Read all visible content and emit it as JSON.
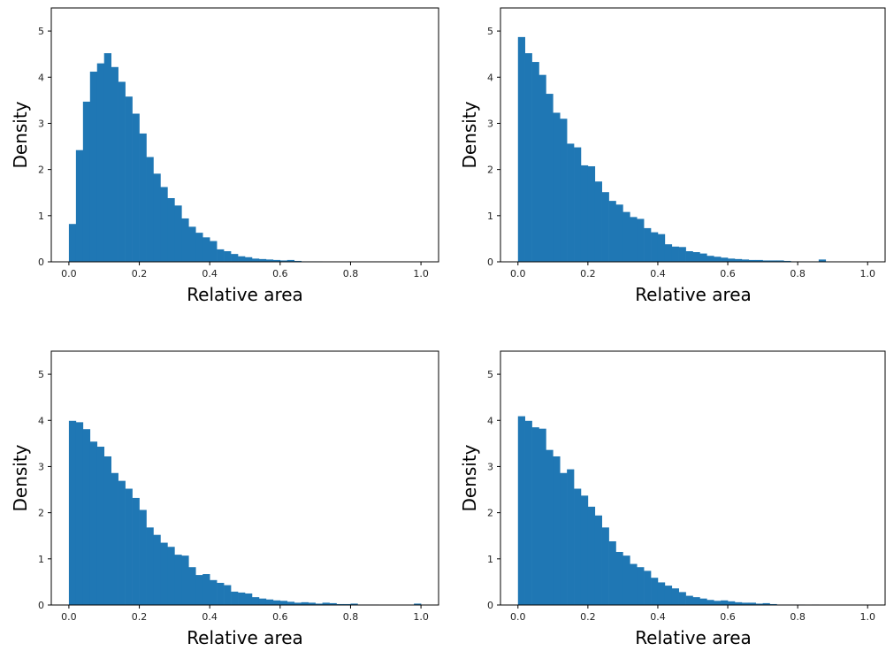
{
  "colors": {
    "bar": "#1f77b4",
    "axis": "#000000",
    "background": "#ffffff"
  },
  "chart_data": [
    {
      "type": "bar",
      "xlabel": "Relative area",
      "ylabel": "Density",
      "xlim": [
        -0.05,
        1.05
      ],
      "ylim": [
        0,
        5.5
      ],
      "xticks": [
        0.0,
        0.2,
        0.4,
        0.6,
        0.8,
        1.0
      ],
      "xtick_labels": [
        "0.0",
        "0.2",
        "0.4",
        "0.6",
        "0.8",
        "1.0"
      ],
      "yticks": [
        0,
        1,
        2,
        3,
        4,
        5
      ],
      "ytick_labels": [
        "0",
        "1",
        "2",
        "3",
        "4",
        "5"
      ],
      "grid": false,
      "bin_edges_range": [
        0.0,
        1.0
      ],
      "values": [
        0.82,
        2.42,
        3.47,
        4.12,
        4.3,
        4.52,
        4.22,
        3.9,
        3.58,
        3.21,
        2.78,
        2.27,
        1.91,
        1.62,
        1.38,
        1.22,
        0.94,
        0.76,
        0.63,
        0.53,
        0.45,
        0.27,
        0.23,
        0.17,
        0.12,
        0.1,
        0.07,
        0.06,
        0.05,
        0.04,
        0.03,
        0.04,
        0.02,
        0.01,
        0.01,
        0.01,
        0.0,
        0.0,
        0.0,
        0.0,
        0.0,
        0.0,
        0.0,
        0.0,
        0.0,
        0.0,
        0.0,
        0.0,
        0.0,
        0.0
      ]
    },
    {
      "type": "bar",
      "xlabel": "Relative area",
      "ylabel": "Density",
      "xlim": [
        -0.05,
        1.05
      ],
      "ylim": [
        0,
        5.5
      ],
      "xticks": [
        0.0,
        0.2,
        0.4,
        0.6,
        0.8,
        1.0
      ],
      "xtick_labels": [
        "0.0",
        "0.2",
        "0.4",
        "0.6",
        "0.8",
        "1.0"
      ],
      "yticks": [
        0,
        1,
        2,
        3,
        4,
        5
      ],
      "ytick_labels": [
        "0",
        "1",
        "2",
        "3",
        "4",
        "5"
      ],
      "grid": false,
      "bin_edges_range": [
        0.0,
        1.0
      ],
      "values": [
        4.87,
        4.52,
        4.33,
        4.05,
        3.64,
        3.23,
        3.1,
        2.56,
        2.48,
        2.09,
        2.07,
        1.74,
        1.51,
        1.32,
        1.24,
        1.08,
        0.97,
        0.93,
        0.73,
        0.64,
        0.6,
        0.38,
        0.33,
        0.32,
        0.23,
        0.21,
        0.18,
        0.13,
        0.11,
        0.09,
        0.07,
        0.06,
        0.05,
        0.04,
        0.04,
        0.03,
        0.03,
        0.03,
        0.02,
        0.01,
        0.01,
        0.01,
        0.01,
        0.05,
        0.0,
        0.0,
        0.0,
        0.0,
        0.0,
        0.0
      ]
    },
    {
      "type": "bar",
      "xlabel": "Relative area",
      "ylabel": "Density",
      "xlim": [
        -0.05,
        1.05
      ],
      "ylim": [
        0,
        5.5
      ],
      "xticks": [
        0.0,
        0.2,
        0.4,
        0.6,
        0.8,
        1.0
      ],
      "xtick_labels": [
        "0.0",
        "0.2",
        "0.4",
        "0.6",
        "0.8",
        "1.0"
      ],
      "yticks": [
        0,
        1,
        2,
        3,
        4,
        5
      ],
      "ytick_labels": [
        "0",
        "1",
        "2",
        "3",
        "4",
        "5"
      ],
      "grid": false,
      "bin_edges_range": [
        0.0,
        1.0
      ],
      "values": [
        3.99,
        3.96,
        3.81,
        3.54,
        3.43,
        3.22,
        2.86,
        2.69,
        2.52,
        2.32,
        2.06,
        1.68,
        1.52,
        1.35,
        1.26,
        1.09,
        1.07,
        0.82,
        0.65,
        0.67,
        0.54,
        0.48,
        0.43,
        0.29,
        0.27,
        0.25,
        0.17,
        0.14,
        0.12,
        0.1,
        0.09,
        0.07,
        0.05,
        0.06,
        0.05,
        0.03,
        0.05,
        0.04,
        0.02,
        0.02,
        0.03,
        0.01,
        0.01,
        0.01,
        0.0,
        0.0,
        0.0,
        0.0,
        0.0,
        0.03
      ]
    },
    {
      "type": "bar",
      "xlabel": "Relative area",
      "ylabel": "Density",
      "xlim": [
        -0.05,
        1.05
      ],
      "ylim": [
        0,
        5.5
      ],
      "xticks": [
        0.0,
        0.2,
        0.4,
        0.6,
        0.8,
        1.0
      ],
      "xtick_labels": [
        "0.0",
        "0.2",
        "0.4",
        "0.6",
        "0.8",
        "1.0"
      ],
      "yticks": [
        0,
        1,
        2,
        3,
        4,
        5
      ],
      "ytick_labels": [
        "0",
        "1",
        "2",
        "3",
        "4",
        "5"
      ],
      "grid": false,
      "bin_edges_range": [
        0.0,
        1.0
      ],
      "values": [
        4.09,
        3.99,
        3.85,
        3.82,
        3.36,
        3.22,
        2.86,
        2.94,
        2.52,
        2.37,
        2.13,
        1.94,
        1.68,
        1.38,
        1.15,
        1.07,
        0.89,
        0.82,
        0.74,
        0.59,
        0.49,
        0.42,
        0.36,
        0.28,
        0.2,
        0.17,
        0.14,
        0.11,
        0.09,
        0.1,
        0.08,
        0.06,
        0.05,
        0.05,
        0.03,
        0.04,
        0.02,
        0.01,
        0.01,
        0.01,
        0.01,
        0.0,
        0.01,
        0.0,
        0.0,
        0.0,
        0.0,
        0.0,
        0.0,
        0.0
      ]
    }
  ]
}
